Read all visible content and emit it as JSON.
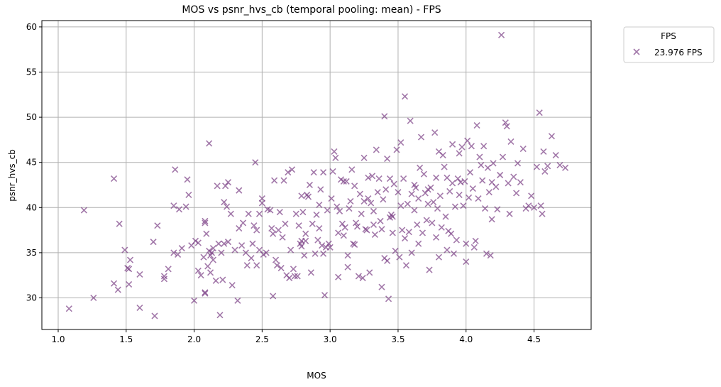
{
  "chart_data": {
    "type": "scatter",
    "title": "MOS vs psnr_hvs_cb (temporal pooling: mean) - FPS",
    "xlabel": "MOS",
    "ylabel": "psnr_hvs_cb",
    "xlim": [
      0.88,
      4.92
    ],
    "ylim": [
      26.5,
      60.7
    ],
    "xticks": [
      1.0,
      1.5,
      2.0,
      2.5,
      3.0,
      3.5,
      4.0,
      4.5
    ],
    "xtick_labels": [
      "1.0",
      "1.5",
      "2.0",
      "2.5",
      "3.0",
      "3.5",
      "4.0",
      "4.5"
    ],
    "yticks": [
      30,
      35,
      40,
      45,
      50,
      55,
      60
    ],
    "ytick_labels": [
      "30",
      "35",
      "40",
      "45",
      "50",
      "55",
      "60"
    ],
    "grid": true,
    "legend": {
      "title": "FPS",
      "placement": "outside-top-right"
    },
    "series": [
      {
        "name": "23.976 FPS",
        "color": "#7b3f86",
        "marker": "x",
        "points": [
          [
            1.08,
            28.8
          ],
          [
            1.19,
            39.7
          ],
          [
            1.26,
            30.0
          ],
          [
            1.41,
            43.2
          ],
          [
            1.41,
            31.6
          ],
          [
            1.44,
            30.9
          ],
          [
            1.45,
            38.2
          ],
          [
            1.49,
            35.3
          ],
          [
            1.51,
            33.3
          ],
          [
            1.52,
            33.2
          ],
          [
            1.52,
            31.5
          ],
          [
            1.53,
            34.2
          ],
          [
            1.6,
            32.6
          ],
          [
            1.6,
            28.9
          ],
          [
            1.7,
            36.2
          ],
          [
            1.71,
            28.0
          ],
          [
            1.73,
            38.0
          ],
          [
            1.78,
            32.4
          ],
          [
            1.78,
            32.1
          ],
          [
            1.81,
            33.2
          ],
          [
            1.85,
            40.2
          ],
          [
            1.85,
            35.0
          ],
          [
            1.86,
            44.2
          ],
          [
            1.88,
            34.8
          ],
          [
            1.89,
            39.8
          ],
          [
            1.91,
            35.5
          ],
          [
            1.94,
            40.1
          ],
          [
            1.95,
            43.1
          ],
          [
            1.96,
            41.4
          ],
          [
            1.98,
            35.8
          ],
          [
            2.0,
            29.7
          ],
          [
            2.01,
            36.3
          ],
          [
            2.03,
            33.0
          ],
          [
            2.03,
            36.1
          ],
          [
            2.05,
            32.5
          ],
          [
            2.07,
            34.5
          ],
          [
            2.08,
            38.3
          ],
          [
            2.08,
            38.5
          ],
          [
            2.08,
            30.6
          ],
          [
            2.08,
            30.5
          ],
          [
            2.09,
            37.1
          ],
          [
            2.1,
            33.5
          ],
          [
            2.11,
            35.2
          ],
          [
            2.11,
            47.1
          ],
          [
            2.12,
            34.7
          ],
          [
            2.12,
            32.8
          ],
          [
            2.13,
            35.0
          ],
          [
            2.14,
            35.5
          ],
          [
            2.14,
            34.2
          ],
          [
            2.16,
            31.9
          ],
          [
            2.17,
            42.4
          ],
          [
            2.18,
            36.0
          ],
          [
            2.19,
            28.1
          ],
          [
            2.2,
            35.0
          ],
          [
            2.21,
            32.0
          ],
          [
            2.22,
            36.0
          ],
          [
            2.22,
            40.6
          ],
          [
            2.23,
            42.4
          ],
          [
            2.24,
            40.1
          ],
          [
            2.25,
            36.2
          ],
          [
            2.25,
            42.8
          ],
          [
            2.27,
            39.3
          ],
          [
            2.28,
            31.4
          ],
          [
            2.3,
            35.3
          ],
          [
            2.32,
            29.7
          ],
          [
            2.33,
            37.7
          ],
          [
            2.33,
            41.9
          ],
          [
            2.35,
            35.8
          ],
          [
            2.36,
            38.3
          ],
          [
            2.38,
            35.0
          ],
          [
            2.39,
            33.6
          ],
          [
            2.4,
            39.3
          ],
          [
            2.42,
            34.4
          ],
          [
            2.43,
            36.0
          ],
          [
            2.44,
            38.0
          ],
          [
            2.45,
            45.0
          ],
          [
            2.46,
            33.6
          ],
          [
            2.46,
            37.5
          ],
          [
            2.48,
            35.3
          ],
          [
            2.48,
            39.3
          ],
          [
            2.5,
            40.5
          ],
          [
            2.5,
            41.0
          ],
          [
            2.51,
            34.8
          ],
          [
            2.53,
            35.0
          ],
          [
            2.54,
            39.8
          ],
          [
            2.56,
            39.7
          ],
          [
            2.57,
            37.7
          ],
          [
            2.58,
            30.2
          ],
          [
            2.59,
            43.0
          ],
          [
            2.6,
            34.2
          ],
          [
            2.61,
            33.6
          ],
          [
            2.62,
            37.5
          ],
          [
            2.63,
            39.5
          ],
          [
            2.64,
            33.3
          ],
          [
            2.65,
            36.7
          ],
          [
            2.66,
            43.0
          ],
          [
            2.67,
            38.2
          ],
          [
            2.68,
            32.5
          ],
          [
            2.69,
            43.9
          ],
          [
            2.7,
            32.2
          ],
          [
            2.71,
            35.3
          ],
          [
            2.72,
            44.2
          ],
          [
            2.73,
            33.2
          ],
          [
            2.74,
            32.4
          ],
          [
            2.75,
            39.3
          ],
          [
            2.76,
            32.4
          ],
          [
            2.77,
            38.0
          ],
          [
            2.78,
            36.0
          ],
          [
            2.79,
            41.3
          ],
          [
            2.79,
            36.3
          ],
          [
            2.79,
            35.7
          ],
          [
            2.8,
            39.5
          ],
          [
            2.81,
            34.7
          ],
          [
            2.82,
            37.1
          ],
          [
            2.82,
            36.3
          ],
          [
            2.83,
            41.4
          ],
          [
            2.84,
            41.2
          ],
          [
            2.85,
            42.5
          ],
          [
            2.86,
            32.8
          ],
          [
            2.87,
            38.2
          ],
          [
            2.88,
            43.9
          ],
          [
            2.89,
            34.9
          ],
          [
            2.9,
            39.2
          ],
          [
            2.91,
            36.4
          ],
          [
            2.92,
            40.3
          ],
          [
            2.93,
            42.0
          ],
          [
            2.94,
            35.8
          ],
          [
            2.95,
            34.9
          ],
          [
            2.95,
            43.9
          ],
          [
            2.96,
            30.3
          ],
          [
            2.97,
            35.6
          ],
          [
            2.98,
            39.7
          ],
          [
            2.99,
            36.0
          ],
          [
            3.0,
            35.6
          ],
          [
            3.01,
            41.0
          ],
          [
            3.02,
            44.0
          ],
          [
            3.03,
            46.2
          ],
          [
            3.04,
            45.5
          ],
          [
            3.05,
            40.1
          ],
          [
            3.06,
            37.2
          ],
          [
            3.06,
            32.3
          ],
          [
            3.07,
            39.6
          ],
          [
            3.08,
            43.1
          ],
          [
            3.09,
            38.2
          ],
          [
            3.1,
            42.9
          ],
          [
            3.1,
            36.9
          ],
          [
            3.11,
            37.8
          ],
          [
            3.12,
            42.9
          ],
          [
            3.13,
            33.4
          ],
          [
            3.13,
            34.7
          ],
          [
            3.14,
            39.9
          ],
          [
            3.15,
            40.7
          ],
          [
            3.16,
            44.2
          ],
          [
            3.17,
            36.0
          ],
          [
            3.18,
            42.4
          ],
          [
            3.18,
            35.9
          ],
          [
            3.19,
            38.3
          ],
          [
            3.2,
            37.9
          ],
          [
            3.21,
            32.4
          ],
          [
            3.22,
            41.5
          ],
          [
            3.23,
            39.3
          ],
          [
            3.24,
            32.2
          ],
          [
            3.25,
            45.5
          ],
          [
            3.25,
            40.7
          ],
          [
            3.26,
            37.6
          ],
          [
            3.27,
            37.5
          ],
          [
            3.28,
            43.3
          ],
          [
            3.29,
            32.8
          ],
          [
            3.3,
            40.5
          ],
          [
            3.31,
            43.5
          ],
          [
            3.32,
            38.1
          ],
          [
            3.32,
            39.6
          ],
          [
            3.33,
            37.0
          ],
          [
            3.34,
            46.4
          ],
          [
            3.35,
            41.7
          ],
          [
            3.36,
            43.2
          ],
          [
            3.37,
            38.5
          ],
          [
            3.38,
            31.2
          ],
          [
            3.38,
            37.6
          ],
          [
            3.39,
            40.9
          ],
          [
            3.4,
            34.4
          ],
          [
            3.4,
            50.1
          ],
          [
            3.41,
            42.0
          ],
          [
            3.42,
            34.1
          ],
          [
            3.42,
            45.4
          ],
          [
            3.43,
            29.9
          ],
          [
            3.44,
            43.2
          ],
          [
            3.44,
            38.9
          ],
          [
            3.45,
            39.2
          ],
          [
            3.46,
            39.0
          ],
          [
            3.47,
            42.6
          ],
          [
            3.48,
            35.2
          ],
          [
            3.49,
            46.4
          ],
          [
            3.5,
            41.7
          ],
          [
            3.51,
            34.5
          ],
          [
            3.52,
            47.2
          ],
          [
            3.52,
            40.2
          ],
          [
            3.53,
            37.5
          ],
          [
            3.54,
            43.2
          ],
          [
            3.55,
            52.3
          ],
          [
            3.55,
            36.6
          ],
          [
            3.56,
            33.6
          ],
          [
            3.57,
            40.4
          ],
          [
            3.58,
            37.3
          ],
          [
            3.59,
            49.6
          ],
          [
            3.6,
            35.0
          ],
          [
            3.6,
            41.5
          ],
          [
            3.62,
            42.5
          ],
          [
            3.62,
            39.7
          ],
          [
            3.64,
            38.1
          ],
          [
            3.65,
            41.0
          ],
          [
            3.65,
            36.0
          ],
          [
            3.66,
            44.4
          ],
          [
            3.67,
            47.8
          ],
          [
            3.68,
            37.2
          ],
          [
            3.69,
            43.7
          ],
          [
            3.7,
            41.6
          ],
          [
            3.71,
            38.6
          ],
          [
            3.72,
            40.4
          ],
          [
            3.72,
            42.0
          ],
          [
            3.73,
            33.1
          ],
          [
            3.74,
            42.2
          ],
          [
            3.75,
            38.3
          ],
          [
            3.76,
            40.6
          ],
          [
            3.77,
            48.3
          ],
          [
            3.78,
            36.7
          ],
          [
            3.78,
            43.3
          ],
          [
            3.79,
            39.9
          ],
          [
            3.8,
            34.5
          ],
          [
            3.8,
            46.2
          ],
          [
            3.81,
            41.3
          ],
          [
            3.82,
            37.8
          ],
          [
            3.83,
            45.8
          ],
          [
            3.84,
            44.5
          ],
          [
            3.85,
            39.0
          ],
          [
            3.86,
            43.3
          ],
          [
            3.86,
            35.3
          ],
          [
            3.87,
            37.4
          ],
          [
            3.88,
            41.8
          ],
          [
            3.89,
            37.1
          ],
          [
            3.9,
            42.7
          ],
          [
            3.9,
            47.0
          ],
          [
            3.91,
            34.9
          ],
          [
            3.92,
            40.1
          ],
          [
            3.93,
            36.4
          ],
          [
            3.94,
            43.2
          ],
          [
            3.95,
            41.4
          ],
          [
            3.95,
            46.0
          ],
          [
            3.96,
            42.8
          ],
          [
            3.97,
            46.7
          ],
          [
            3.98,
            40.2
          ],
          [
            3.99,
            42.9
          ],
          [
            4.0,
            34.0
          ],
          [
            4.0,
            36.0
          ],
          [
            4.01,
            47.4
          ],
          [
            4.02,
            41.1
          ],
          [
            4.03,
            43.9
          ],
          [
            4.04,
            46.8
          ],
          [
            4.05,
            42.1
          ],
          [
            4.06,
            35.6
          ],
          [
            4.07,
            36.3
          ],
          [
            4.08,
            49.1
          ],
          [
            4.09,
            41.0
          ],
          [
            4.1,
            45.6
          ],
          [
            4.11,
            44.7
          ],
          [
            4.12,
            43.0
          ],
          [
            4.13,
            46.8
          ],
          [
            4.14,
            39.9
          ],
          [
            4.15,
            34.9
          ],
          [
            4.16,
            44.4
          ],
          [
            4.17,
            41.7
          ],
          [
            4.18,
            34.7
          ],
          [
            4.19,
            38.7
          ],
          [
            4.2,
            44.9
          ],
          [
            4.22,
            42.3
          ],
          [
            4.23,
            39.8
          ],
          [
            4.25,
            43.6
          ],
          [
            4.26,
            59.1
          ],
          [
            4.27,
            45.6
          ],
          [
            4.29,
            49.4
          ],
          [
            4.3,
            49.0
          ],
          [
            4.31,
            42.7
          ],
          [
            4.32,
            39.3
          ],
          [
            4.33,
            47.3
          ],
          [
            4.35,
            43.4
          ],
          [
            4.37,
            41.6
          ],
          [
            4.38,
            44.9
          ],
          [
            4.4,
            42.8
          ],
          [
            4.42,
            46.5
          ],
          [
            4.44,
            39.9
          ],
          [
            4.46,
            40.2
          ],
          [
            4.48,
            41.3
          ],
          [
            4.5,
            40.0
          ],
          [
            4.52,
            44.5
          ],
          [
            4.54,
            50.5
          ],
          [
            4.55,
            40.2
          ],
          [
            4.56,
            39.3
          ],
          [
            4.57,
            46.2
          ],
          [
            4.58,
            44.0
          ],
          [
            4.6,
            44.6
          ],
          [
            4.63,
            47.9
          ],
          [
            4.66,
            45.8
          ],
          [
            4.69,
            44.7
          ],
          [
            4.73,
            44.4
          ],
          [
            4.19,
            42.8
          ],
          [
            3.63,
            42.2
          ],
          [
            3.28,
            41.0
          ],
          [
            2.92,
            37.7
          ],
          [
            2.58,
            37.1
          ],
          [
            3.46,
            37.2
          ]
        ]
      }
    ]
  }
}
